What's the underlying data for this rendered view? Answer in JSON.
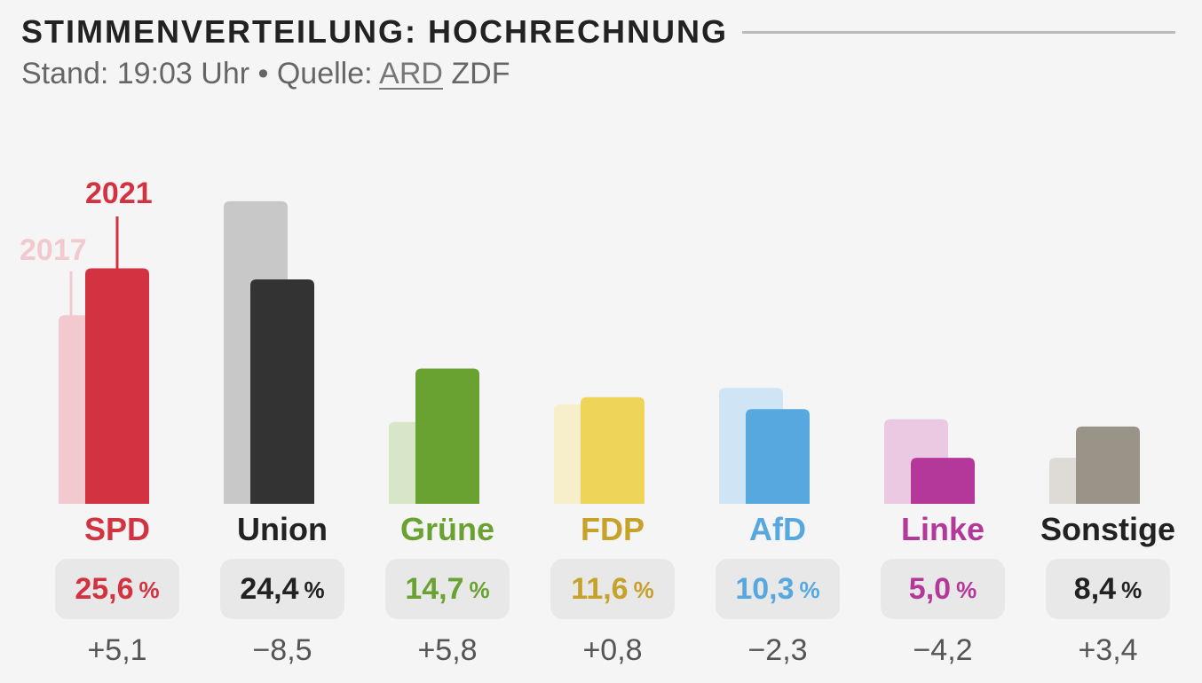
{
  "header": {
    "title": "STIMMENVERTEILUNG: HOCHRECHNUNG",
    "subtitle_prefix": "Stand: 19:03 Uhr • Quelle: ",
    "source_selected": "ARD",
    "source_other": "ZDF"
  },
  "legend": {
    "year_previous": "2017",
    "year_current": "2021"
  },
  "unit_symbol": "%",
  "colors": {
    "SPD": "#d33341",
    "Union": "#333333",
    "Grüne": "#6aa232",
    "FDP": "#efd45a",
    "AfD": "#58a8e0",
    "Linke": "#b3389a",
    "Sonstige": "#9a9387"
  },
  "chart_data": {
    "type": "bar",
    "title": "STIMMENVERTEILUNG: HOCHRECHNUNG",
    "categories": [
      "SPD",
      "Union",
      "Grüne",
      "FDP",
      "AfD",
      "Linke",
      "Sonstige"
    ],
    "series": [
      {
        "name": "2017",
        "values": [
          20.5,
          32.9,
          8.9,
          10.8,
          12.6,
          9.2,
          5.0
        ]
      },
      {
        "name": "2021",
        "values": [
          25.6,
          24.4,
          14.7,
          11.6,
          10.3,
          5.0,
          8.4
        ]
      }
    ],
    "value_labels": [
      "25,6",
      "24,4",
      "14,7",
      "11,6",
      "10,3",
      "5,0",
      "8,4"
    ],
    "diff_labels": [
      "+5,1",
      "−8,5",
      "+5,8",
      "+0,8",
      "−2,3",
      "−4,2",
      "+3,4"
    ],
    "label_colors": [
      "#d33341",
      "#222222",
      "#6aa232",
      "#c7a22a",
      "#58a8e0",
      "#b3389a",
      "#222222"
    ],
    "light_colors": [
      "#f1c9ce",
      "#c8c8c8",
      "#d6e6c6",
      "#f7efc9",
      "#cfe4f5",
      "#ebc9e2",
      "#dedbd6"
    ],
    "ylim": [
      0,
      34
    ],
    "grid": false,
    "legend_position": "on first bar group"
  }
}
